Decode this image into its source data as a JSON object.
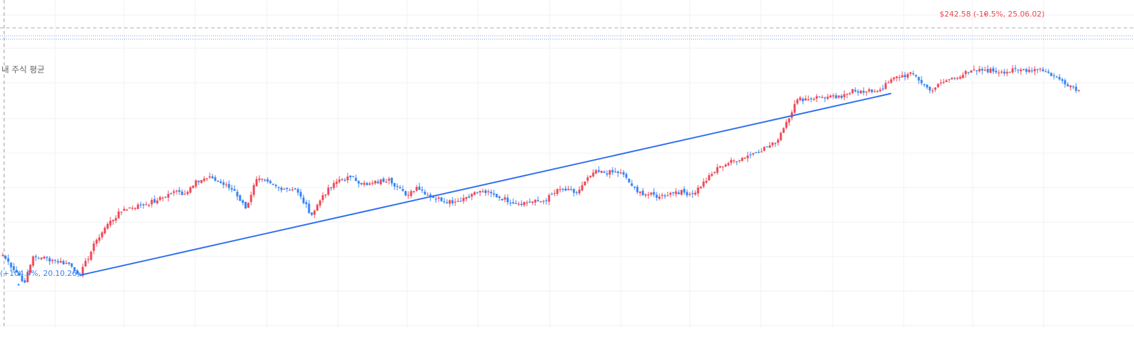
{
  "chart_data": {
    "type": "candlestick",
    "y_range": [
      180,
      255
    ],
    "grid": true,
    "colors": {
      "up": "#ef4453",
      "down": "#3182f6",
      "trendline": "#2f6ff0",
      "avg_line": "#6f95e8",
      "ref_line": "#b0b0b0",
      "grid": "#f0f0f0"
    },
    "avg_label": "내 주식 평균",
    "avg_price": 246.8,
    "ref_price": 248.6,
    "high": {
      "label": "$242.58 (-10.5%, 25.06.02)",
      "price": 251.3
    },
    "low": {
      "label": "(+104.4%, 20.10.26)",
      "price": 190.3
    },
    "trendline": {
      "start": [
        28,
        192.0
      ],
      "end": [
        322,
        233.6
      ]
    },
    "control_points": [
      [
        0,
        196.6
      ],
      [
        8,
        190.3
      ],
      [
        11,
        196.3
      ],
      [
        14,
        196.0
      ],
      [
        18,
        195.5
      ],
      [
        24,
        194.6
      ],
      [
        28,
        192.1
      ],
      [
        34,
        200.1
      ],
      [
        38,
        203.7
      ],
      [
        44,
        207.2
      ],
      [
        50,
        208.0
      ],
      [
        56,
        209.1
      ],
      [
        62,
        211.2
      ],
      [
        66,
        210.6
      ],
      [
        70,
        213.7
      ],
      [
        76,
        214.2
      ],
      [
        84,
        211.3
      ],
      [
        88,
        207.3
      ],
      [
        92,
        214.0
      ],
      [
        100,
        212.1
      ],
      [
        106,
        211.7
      ],
      [
        112,
        205.8
      ],
      [
        116,
        210.3
      ],
      [
        122,
        213.9
      ],
      [
        126,
        214.4
      ],
      [
        132,
        212.6
      ],
      [
        140,
        214.1
      ],
      [
        146,
        210.3
      ],
      [
        150,
        212.2
      ],
      [
        156,
        209.7
      ],
      [
        164,
        208.8
      ],
      [
        170,
        210.6
      ],
      [
        174,
        211.2
      ],
      [
        186,
        208.5
      ],
      [
        196,
        209.0
      ],
      [
        202,
        211.7
      ],
      [
        208,
        210.8
      ],
      [
        214,
        215.5
      ],
      [
        224,
        215.5
      ],
      [
        230,
        211.0
      ],
      [
        238,
        210.0
      ],
      [
        244,
        211.2
      ],
      [
        250,
        210.6
      ],
      [
        260,
        217.0
      ],
      [
        270,
        219.4
      ],
      [
        280,
        222.2
      ],
      [
        288,
        232.2
      ],
      [
        296,
        232.8
      ],
      [
        304,
        232.6
      ],
      [
        308,
        234.6
      ],
      [
        312,
        233.8
      ],
      [
        318,
        234.5
      ],
      [
        324,
        237.5
      ],
      [
        330,
        238.0
      ],
      [
        336,
        234.3
      ],
      [
        342,
        236.6
      ],
      [
        350,
        238.5
      ],
      [
        356,
        239.0
      ],
      [
        362,
        238.6
      ],
      [
        368,
        238.9
      ],
      [
        376,
        239.3
      ],
      [
        384,
        236.5
      ],
      [
        390,
        234.4
      ]
    ]
  }
}
